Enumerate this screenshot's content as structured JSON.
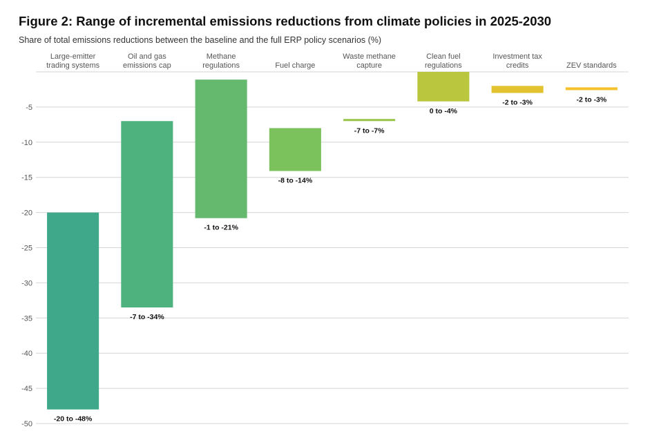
{
  "title": "Figure 2: Range of incremental emissions reductions from climate policies in 2025-2030",
  "subtitle": "Share of total emissions reductions between the baseline and the full ERP policy scenarios (%)",
  "chart_data": {
    "type": "bar",
    "subtype": "floating-range",
    "ylim": [
      -50,
      0
    ],
    "yticks": [
      -5,
      -10,
      -15,
      -20,
      -25,
      -30,
      -35,
      -40,
      -45,
      -50
    ],
    "grid": true,
    "categories": [
      [
        "Large-emitter",
        "trading systems"
      ],
      [
        "Oil and gas",
        "emissions cap"
      ],
      [
        "Methane",
        "regulations"
      ],
      [
        "Fuel charge"
      ],
      [
        "Waste methane",
        "capture"
      ],
      [
        "Clean fuel",
        "regulations"
      ],
      [
        "Investment tax",
        "credits"
      ],
      [
        "ZEV standards"
      ]
    ],
    "ranges": [
      [
        -20,
        -48
      ],
      [
        -7,
        -33.5
      ],
      [
        -1.1,
        -20.8
      ],
      [
        -8,
        -14.1
      ],
      [
        -6.7,
        -7
      ],
      [
        0,
        -4.2
      ],
      [
        -2,
        -3
      ],
      [
        -2.2,
        -2.6
      ]
    ],
    "labels": [
      "-20 to -48%",
      "-7 to -34%",
      "-1 to -21%",
      "-8 to -14%",
      "-7 to -7%",
      "0 to -4%",
      "-2 to -3%",
      "-2 to -3%"
    ],
    "colors": [
      "#3fa88b",
      "#4db27e",
      "#64b96f",
      "#7bc15c",
      "#98c54a",
      "#bac63d",
      "#e2c22f",
      "#f5c12e"
    ]
  }
}
